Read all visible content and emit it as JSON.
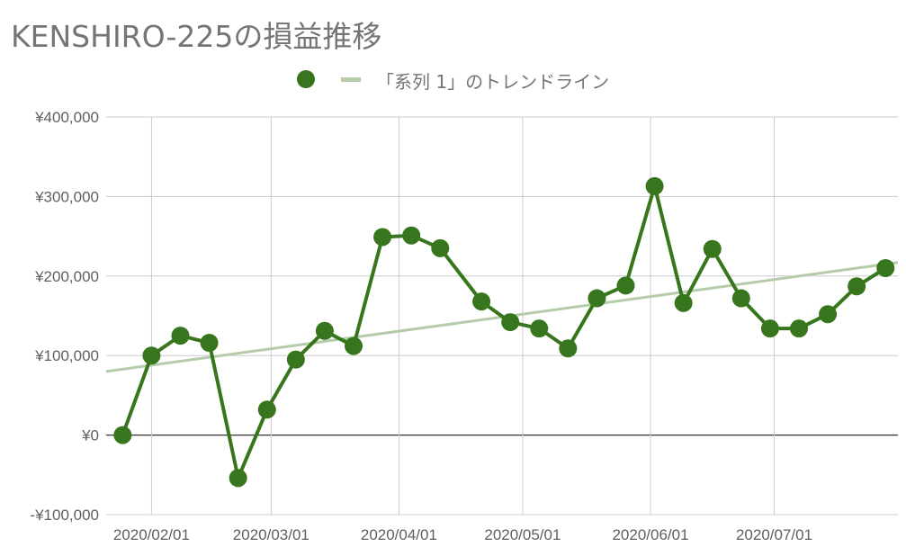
{
  "title": "KENSHIRO-225の損益推移",
  "chart_data": {
    "type": "line",
    "title": "KENSHIRO-225の損益推移",
    "series": [
      {
        "name": "",
        "color": "#38761d",
        "points": [
          {
            "x": "2020-01-25",
            "y": 0
          },
          {
            "x": "2020-02-01",
            "y": 100000
          },
          {
            "x": "2020-02-08",
            "y": 125000
          },
          {
            "x": "2020-02-15",
            "y": 116000
          },
          {
            "x": "2020-02-22",
            "y": -54000
          },
          {
            "x": "2020-02-29",
            "y": 32000
          },
          {
            "x": "2020-03-07",
            "y": 95000
          },
          {
            "x": "2020-03-14",
            "y": 131000
          },
          {
            "x": "2020-03-21",
            "y": 112000
          },
          {
            "x": "2020-03-28",
            "y": 249000
          },
          {
            "x": "2020-04-04",
            "y": 251000
          },
          {
            "x": "2020-04-11",
            "y": 235000
          },
          {
            "x": "2020-04-21",
            "y": 168000
          },
          {
            "x": "2020-04-28",
            "y": 142000
          },
          {
            "x": "2020-05-05",
            "y": 134000
          },
          {
            "x": "2020-05-12",
            "y": 109000
          },
          {
            "x": "2020-05-19",
            "y": 172000
          },
          {
            "x": "2020-05-26",
            "y": 188000
          },
          {
            "x": "2020-06-02",
            "y": 313000
          },
          {
            "x": "2020-06-09",
            "y": 166000
          },
          {
            "x": "2020-06-16",
            "y": 234000
          },
          {
            "x": "2020-06-23",
            "y": 172000
          },
          {
            "x": "2020-06-30",
            "y": 134000
          },
          {
            "x": "2020-07-07",
            "y": 134000
          },
          {
            "x": "2020-07-14",
            "y": 152000
          },
          {
            "x": "2020-07-21",
            "y": 187000
          },
          {
            "x": "2020-07-28",
            "y": 210000
          }
        ]
      }
    ],
    "trendline": {
      "label": "「系列 1」のトレンドライン",
      "color": "#b5ccab",
      "start": {
        "x": "2020-01-21",
        "y": 80000
      },
      "end": {
        "x": "2020-07-31",
        "y": 217000
      }
    },
    "x_ticks": [
      {
        "x": "2020-02-01",
        "label": "2020/02/01"
      },
      {
        "x": "2020-03-01",
        "label": "2020/03/01"
      },
      {
        "x": "2020-04-01",
        "label": "2020/04/01"
      },
      {
        "x": "2020-05-01",
        "label": "2020/05/01"
      },
      {
        "x": "2020-06-01",
        "label": "2020/06/01"
      },
      {
        "x": "2020-07-01",
        "label": "2020/07/01"
      }
    ],
    "xlim": [
      "2020-01-21",
      "2020-07-31"
    ],
    "y_ticks": [
      {
        "value": 400000,
        "label": "¥400,000"
      },
      {
        "value": 300000,
        "label": "¥300,000"
      },
      {
        "value": 200000,
        "label": "¥200,000"
      },
      {
        "value": 100000,
        "label": "¥100,000"
      },
      {
        "value": 0,
        "label": "¥0"
      },
      {
        "value": -100000,
        "label": "-¥100,000"
      }
    ],
    "ylim": [
      -100000,
      400000
    ],
    "grid": true,
    "legend_position": "top"
  }
}
